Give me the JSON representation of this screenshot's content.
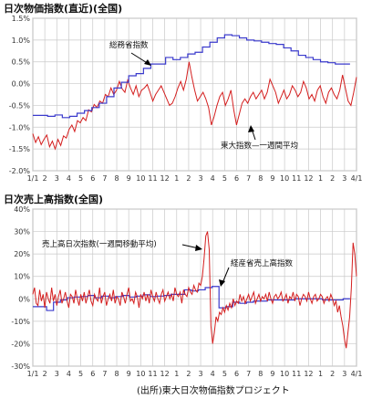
{
  "colors": {
    "official": "#3a3acc",
    "daily": "#d41e1e",
    "grid": "#c9c9c9",
    "frame": "#9a9a9a"
  },
  "source": "(出所)東大日次物価指数プロジェクト",
  "x_tick_labels": [
    "1/1",
    "2",
    "3",
    "4",
    "5",
    "6",
    "7",
    "8",
    "9",
    "10",
    "11",
    "12",
    "1",
    "2",
    "3",
    "4",
    "5",
    "6",
    "7",
    "8",
    "9",
    "10",
    "11",
    "12",
    "1",
    "2",
    "3",
    "4/1"
  ],
  "chart_data": [
    {
      "type": "line",
      "title": "日次物価指数(直近)(全国)",
      "ylim": [
        -2.0,
        1.5
      ],
      "y_ticks": [
        -2.0,
        -1.5,
        -1.0,
        -0.5,
        0.0,
        0.5,
        1.0,
        1.5
      ],
      "y_tick_labels": [
        "-2.0%",
        "-1.5%",
        "-1.0%",
        "-0.5%",
        "0.0%",
        "0.5%",
        "1.0%",
        "1.5%"
      ],
      "annotations": [
        "総務省指数",
        "東大指数—一週間平均"
      ],
      "series": [
        {
          "name": "総務省指数",
          "step": true,
          "values": [
            -0.73,
            -0.73,
            -0.75,
            -0.72,
            -0.78,
            -0.75,
            -0.68,
            -0.62,
            -0.55,
            -0.45,
            -0.3,
            -0.1,
            0.03,
            0.18,
            0.23,
            0.35,
            0.45,
            0.45,
            0.6,
            0.55,
            0.6,
            0.68,
            0.72,
            0.84,
            0.95,
            1.05,
            1.12,
            1.1,
            1.05,
            1.0,
            0.98,
            0.95,
            0.92,
            0.9,
            0.82,
            0.75,
            0.65,
            0.6,
            0.55,
            0.5,
            0.48,
            0.45,
            0.45
          ]
        },
        {
          "name": "東大指数—一週間平均",
          "step": false,
          "values": [
            -1.15,
            -1.35,
            -1.22,
            -1.4,
            -1.28,
            -1.18,
            -1.45,
            -1.32,
            -1.5,
            -1.28,
            -1.42,
            -1.2,
            -1.25,
            -1.05,
            -0.95,
            -1.1,
            -0.85,
            -0.9,
            -0.78,
            -0.85,
            -0.6,
            -0.65,
            -0.48,
            -0.55,
            -0.4,
            -0.45,
            -0.25,
            -0.3,
            -0.1,
            -0.25,
            -0.15,
            0.05,
            -0.12,
            -0.2,
            0.08,
            -0.1,
            -0.25,
            -0.05,
            -0.3,
            -0.15,
            -0.1,
            -0.02,
            -0.2,
            -0.4,
            -0.25,
            -0.15,
            -0.05,
            -0.2,
            -0.35,
            -0.5,
            -0.45,
            -0.3,
            -0.1,
            0.05,
            -0.15,
            0.1,
            0.5,
            0.15,
            -0.15,
            -0.4,
            -0.3,
            -0.2,
            -0.35,
            -0.55,
            -0.95,
            -0.75,
            -0.5,
            -0.3,
            -0.2,
            -0.5,
            -0.35,
            -0.15,
            -0.6,
            -0.95,
            -0.7,
            -0.45,
            -0.35,
            -0.45,
            -0.3,
            -0.2,
            -0.35,
            -0.25,
            -0.15,
            -0.35,
            -0.2,
            0.1,
            -0.05,
            -0.2,
            -0.45,
            -0.3,
            -0.15,
            -0.35,
            -0.25,
            -0.05,
            -0.15,
            -0.3,
            -0.2,
            0.05,
            -0.1,
            -0.35,
            -0.25,
            -0.4,
            -0.15,
            -0.05,
            -0.3,
            -0.45,
            -0.2,
            -0.1,
            -0.25,
            -0.35,
            -0.15,
            0.2,
            -0.1,
            -0.4,
            -0.5,
            -0.2,
            0.15
          ]
        }
      ]
    },
    {
      "type": "line",
      "title": "日次売上高指数(全国)",
      "ylim": [
        -30,
        40
      ],
      "y_ticks": [
        -30,
        -20,
        -10,
        0,
        10,
        20,
        30,
        40
      ],
      "y_tick_labels": [
        "-30%",
        "-20%",
        "-10%",
        "0%",
        "10%",
        "20%",
        "30%",
        "40%"
      ],
      "annotations": [
        "売上高日次指数(一週間移動平均)",
        "経産省売上高指数"
      ],
      "series": [
        {
          "name": "経産省売上高指数",
          "step": true,
          "values": [
            -3.5,
            -3.5,
            -5.2,
            -1.5,
            -0.5,
            0.5,
            0.8,
            1,
            1.5,
            0.5,
            1.2,
            0.5,
            1,
            1.5,
            0.8,
            1.2,
            1.8,
            1,
            1.2,
            1.5,
            2,
            2,
            4,
            3.5,
            4,
            5,
            5.5,
            -4,
            -3.5,
            -1.5,
            -2,
            -1.5,
            -1,
            -1,
            -0.5,
            -0.5,
            -0.5,
            -0.5,
            0,
            0,
            0,
            0,
            -0.5,
            -0.5,
            -0.5,
            0
          ]
        },
        {
          "name": "売上高日次指数(一週間移動平均)",
          "step": false,
          "values": [
            2,
            5,
            -2,
            -3,
            4,
            -1,
            2,
            -4,
            3,
            0,
            -2,
            5,
            -1,
            2,
            -3,
            1,
            4,
            -2,
            0,
            3,
            -1,
            -4,
            2,
            1,
            -2,
            4,
            0,
            -3,
            2,
            -1,
            3,
            -2,
            1,
            4,
            -1,
            -3,
            2,
            0,
            -1,
            5,
            -2,
            1,
            3,
            -3,
            0,
            2,
            -1,
            4,
            -2,
            1,
            0,
            -3,
            3,
            1,
            -2,
            2,
            5,
            -1,
            0,
            -2,
            3,
            1,
            -4,
            2,
            0,
            3,
            -1,
            2,
            -2,
            4,
            1,
            -1,
            3,
            0,
            -2,
            2,
            4,
            -1,
            1,
            3,
            0,
            2,
            -1,
            5,
            2,
            1,
            3,
            -2,
            4,
            2,
            1,
            5,
            3,
            2,
            6,
            4,
            3,
            7,
            6,
            10,
            18,
            28,
            30,
            22,
            -12,
            -20,
            -15,
            -8,
            -10,
            -6,
            -7,
            -4,
            -6,
            -3,
            -5,
            -2,
            -4,
            0,
            -3,
            -1,
            -2,
            2,
            -1,
            1,
            -2,
            0,
            2,
            -1,
            1,
            3,
            -2,
            0,
            2,
            -1,
            1,
            0,
            2,
            -1,
            3,
            0,
            -2,
            1,
            2,
            0,
            1,
            3,
            -1,
            0,
            2,
            -2,
            1,
            0,
            3,
            -1,
            2,
            1,
            -3,
            0,
            2,
            1,
            -1,
            3,
            0,
            -2,
            1,
            2,
            -1,
            0,
            2,
            1,
            -2,
            0,
            1,
            -1,
            2,
            0,
            -3,
            -1,
            -6,
            -3,
            -8,
            -12,
            -18,
            -22,
            -15,
            -8,
            5,
            25,
            20,
            10
          ]
        }
      ]
    }
  ]
}
